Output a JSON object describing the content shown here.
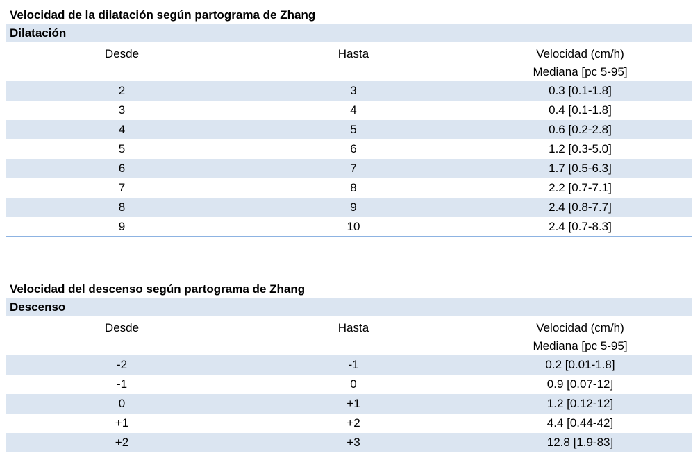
{
  "tables": [
    {
      "title": "Velocidad de la dilatación según partograma de Zhang",
      "section": "Dilatación",
      "headers": {
        "from": "Desde",
        "to": "Hasta",
        "speed_line1": "Velocidad (cm/h)",
        "speed_line2": "Mediana [pc 5-95]"
      },
      "rows": [
        {
          "from": "2",
          "to": "3",
          "speed": "0.3 [0.1-1.8]"
        },
        {
          "from": "3",
          "to": "4",
          "speed": "0.4 [0.1-1.8]"
        },
        {
          "from": "4",
          "to": "5",
          "speed": "0.6 [0.2-2.8]"
        },
        {
          "from": "5",
          "to": "6",
          "speed": "1.2 [0.3-5.0]"
        },
        {
          "from": "6",
          "to": "7",
          "speed": "1.7 [0.5-6.3]"
        },
        {
          "from": "7",
          "to": "8",
          "speed": "2.2 [0.7-7.1]"
        },
        {
          "from": "8",
          "to": "9",
          "speed": "2.4 [0.8-7.7]"
        },
        {
          "from": "9",
          "to": "10",
          "speed": "2.4 [0.7-8.3]"
        }
      ]
    },
    {
      "title": "Velocidad del descenso según partograma de Zhang",
      "section": "Descenso",
      "headers": {
        "from": "Desde",
        "to": "Hasta",
        "speed_line1": "Velocidad (cm/h)",
        "speed_line2": "Mediana [pc 5-95]"
      },
      "rows": [
        {
          "from": "-2",
          "to": "-1",
          "speed": "0.2 [0.01-1.8]"
        },
        {
          "from": "-1",
          "to": "0",
          "speed": "0.9 [0.07-12]"
        },
        {
          "from": "0",
          "to": "+1",
          "speed": "1.2 [0.12-12]"
        },
        {
          "from": "+1",
          "to": "+2",
          "speed": "4.4 [0.44-42]"
        },
        {
          "from": "+2",
          "to": "+3",
          "speed": "12.8 [1.9-83]"
        }
      ]
    }
  ],
  "colors": {
    "band": "#dbe5f1",
    "rule": "#8db3e2"
  }
}
